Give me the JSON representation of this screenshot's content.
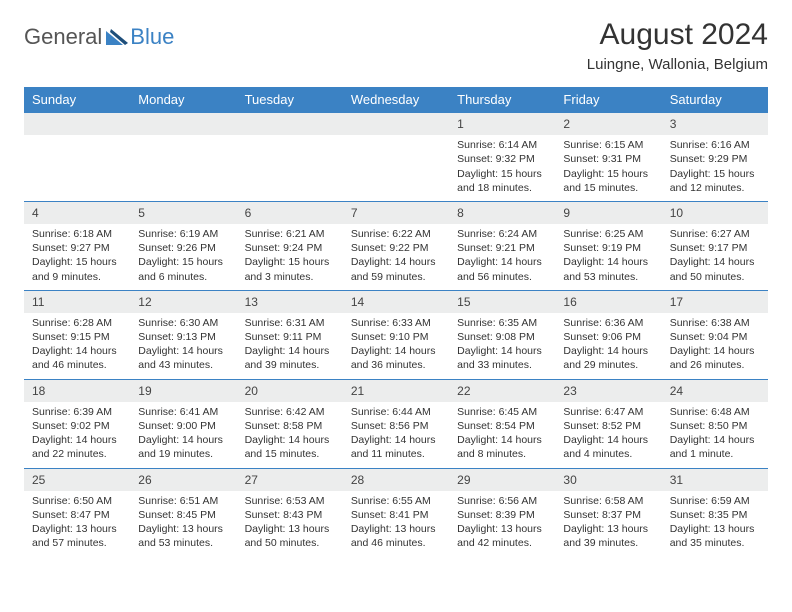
{
  "logo": {
    "text1": "General",
    "text2": "Blue"
  },
  "title": "August 2024",
  "location": "Luingne, Wallonia, Belgium",
  "columns": [
    "Sunday",
    "Monday",
    "Tuesday",
    "Wednesday",
    "Thursday",
    "Friday",
    "Saturday"
  ],
  "colors": {
    "header_bg": "#3b82c4",
    "header_fg": "#ffffff",
    "daynum_bg": "#eceded",
    "border": "#3b82c4",
    "logo_gray": "#555555",
    "logo_blue": "#3b82c4"
  },
  "first_weekday_index": 4,
  "days": [
    {
      "n": 1,
      "sunrise": "6:14 AM",
      "sunset": "9:32 PM",
      "daylight": "15 hours and 18 minutes."
    },
    {
      "n": 2,
      "sunrise": "6:15 AM",
      "sunset": "9:31 PM",
      "daylight": "15 hours and 15 minutes."
    },
    {
      "n": 3,
      "sunrise": "6:16 AM",
      "sunset": "9:29 PM",
      "daylight": "15 hours and 12 minutes."
    },
    {
      "n": 4,
      "sunrise": "6:18 AM",
      "sunset": "9:27 PM",
      "daylight": "15 hours and 9 minutes."
    },
    {
      "n": 5,
      "sunrise": "6:19 AM",
      "sunset": "9:26 PM",
      "daylight": "15 hours and 6 minutes."
    },
    {
      "n": 6,
      "sunrise": "6:21 AM",
      "sunset": "9:24 PM",
      "daylight": "15 hours and 3 minutes."
    },
    {
      "n": 7,
      "sunrise": "6:22 AM",
      "sunset": "9:22 PM",
      "daylight": "14 hours and 59 minutes."
    },
    {
      "n": 8,
      "sunrise": "6:24 AM",
      "sunset": "9:21 PM",
      "daylight": "14 hours and 56 minutes."
    },
    {
      "n": 9,
      "sunrise": "6:25 AM",
      "sunset": "9:19 PM",
      "daylight": "14 hours and 53 minutes."
    },
    {
      "n": 10,
      "sunrise": "6:27 AM",
      "sunset": "9:17 PM",
      "daylight": "14 hours and 50 minutes."
    },
    {
      "n": 11,
      "sunrise": "6:28 AM",
      "sunset": "9:15 PM",
      "daylight": "14 hours and 46 minutes."
    },
    {
      "n": 12,
      "sunrise": "6:30 AM",
      "sunset": "9:13 PM",
      "daylight": "14 hours and 43 minutes."
    },
    {
      "n": 13,
      "sunrise": "6:31 AM",
      "sunset": "9:11 PM",
      "daylight": "14 hours and 39 minutes."
    },
    {
      "n": 14,
      "sunrise": "6:33 AM",
      "sunset": "9:10 PM",
      "daylight": "14 hours and 36 minutes."
    },
    {
      "n": 15,
      "sunrise": "6:35 AM",
      "sunset": "9:08 PM",
      "daylight": "14 hours and 33 minutes."
    },
    {
      "n": 16,
      "sunrise": "6:36 AM",
      "sunset": "9:06 PM",
      "daylight": "14 hours and 29 minutes."
    },
    {
      "n": 17,
      "sunrise": "6:38 AM",
      "sunset": "9:04 PM",
      "daylight": "14 hours and 26 minutes."
    },
    {
      "n": 18,
      "sunrise": "6:39 AM",
      "sunset": "9:02 PM",
      "daylight": "14 hours and 22 minutes."
    },
    {
      "n": 19,
      "sunrise": "6:41 AM",
      "sunset": "9:00 PM",
      "daylight": "14 hours and 19 minutes."
    },
    {
      "n": 20,
      "sunrise": "6:42 AM",
      "sunset": "8:58 PM",
      "daylight": "14 hours and 15 minutes."
    },
    {
      "n": 21,
      "sunrise": "6:44 AM",
      "sunset": "8:56 PM",
      "daylight": "14 hours and 11 minutes."
    },
    {
      "n": 22,
      "sunrise": "6:45 AM",
      "sunset": "8:54 PM",
      "daylight": "14 hours and 8 minutes."
    },
    {
      "n": 23,
      "sunrise": "6:47 AM",
      "sunset": "8:52 PM",
      "daylight": "14 hours and 4 minutes."
    },
    {
      "n": 24,
      "sunrise": "6:48 AM",
      "sunset": "8:50 PM",
      "daylight": "14 hours and 1 minute."
    },
    {
      "n": 25,
      "sunrise": "6:50 AM",
      "sunset": "8:47 PM",
      "daylight": "13 hours and 57 minutes."
    },
    {
      "n": 26,
      "sunrise": "6:51 AM",
      "sunset": "8:45 PM",
      "daylight": "13 hours and 53 minutes."
    },
    {
      "n": 27,
      "sunrise": "6:53 AM",
      "sunset": "8:43 PM",
      "daylight": "13 hours and 50 minutes."
    },
    {
      "n": 28,
      "sunrise": "6:55 AM",
      "sunset": "8:41 PM",
      "daylight": "13 hours and 46 minutes."
    },
    {
      "n": 29,
      "sunrise": "6:56 AM",
      "sunset": "8:39 PM",
      "daylight": "13 hours and 42 minutes."
    },
    {
      "n": 30,
      "sunrise": "6:58 AM",
      "sunset": "8:37 PM",
      "daylight": "13 hours and 39 minutes."
    },
    {
      "n": 31,
      "sunrise": "6:59 AM",
      "sunset": "8:35 PM",
      "daylight": "13 hours and 35 minutes."
    }
  ],
  "labels": {
    "sunrise": "Sunrise:",
    "sunset": "Sunset:",
    "daylight": "Daylight:"
  }
}
